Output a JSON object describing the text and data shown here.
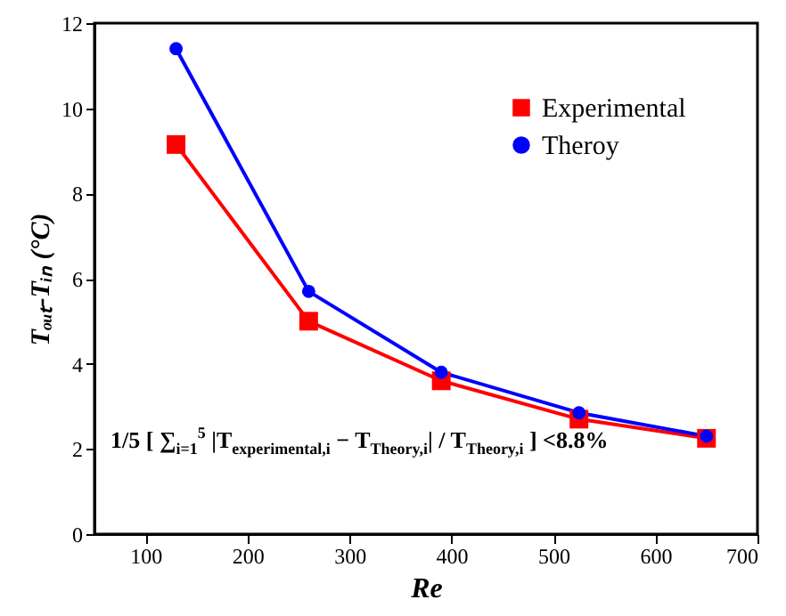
{
  "chart_data": {
    "type": "line",
    "xlabel": "Re",
    "ylabel": "Tₒᵤₜ-Tᵢₙ (°C)",
    "x": [
      130,
      260,
      390,
      525,
      650
    ],
    "series": [
      {
        "name": "Experimental",
        "color": "#ff0000",
        "marker": "square",
        "values": [
          9.15,
          5.0,
          3.6,
          2.7,
          2.25
        ]
      },
      {
        "name": "Theroy",
        "color": "#0000ff",
        "marker": "circle",
        "values": [
          11.4,
          5.7,
          3.8,
          2.85,
          2.3
        ]
      }
    ],
    "xlim": [
      50,
      700
    ],
    "xticks": [
      100,
      200,
      300,
      400,
      500,
      600,
      700
    ],
    "ylim": [
      0,
      12
    ],
    "yticks": [
      0,
      2,
      4,
      6,
      8,
      10,
      12
    ],
    "grid": false,
    "legend": "top right",
    "annotations": [
      "1/5 [ ∑$_{i=1}$$^{5}$ |T$_{experimental,i}$ − T$_{Theory,i}$| / T$_{Theory,i}$ ] <8.8%"
    ]
  }
}
